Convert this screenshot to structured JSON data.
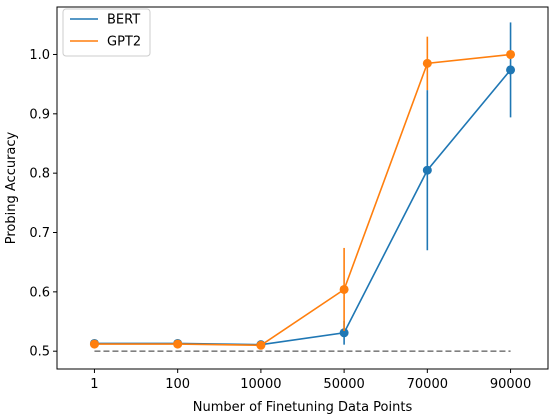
{
  "chart_data": {
    "type": "line",
    "title": "",
    "xlabel": "Number of Finetuning Data Points",
    "ylabel": "Probing Accuracy",
    "categories": [
      "1",
      "100",
      "10000",
      "50000",
      "70000",
      "90000"
    ],
    "ylim": [
      0.47,
      1.08
    ],
    "yticks": [
      "0.5",
      "0.6",
      "0.7",
      "0.8",
      "0.9",
      "1.0"
    ],
    "grid": false,
    "legend_position": "top-left",
    "baseline": {
      "value": 0.5,
      "style": "dashed",
      "color": "#808080"
    },
    "series": [
      {
        "name": "BERT",
        "color": "#1f77b4",
        "values": [
          0.513,
          0.513,
          0.511,
          0.531,
          0.805,
          0.974
        ],
        "error": [
          0.0,
          0.0,
          0.0,
          0.02,
          0.135,
          0.08
        ]
      },
      {
        "name": "GPT2",
        "color": "#ff7f0e",
        "values": [
          0.512,
          0.512,
          0.51,
          0.604,
          0.985,
          1.0
        ],
        "error": [
          0.0,
          0.0,
          0.0,
          0.07,
          0.045,
          0.0
        ]
      }
    ]
  }
}
